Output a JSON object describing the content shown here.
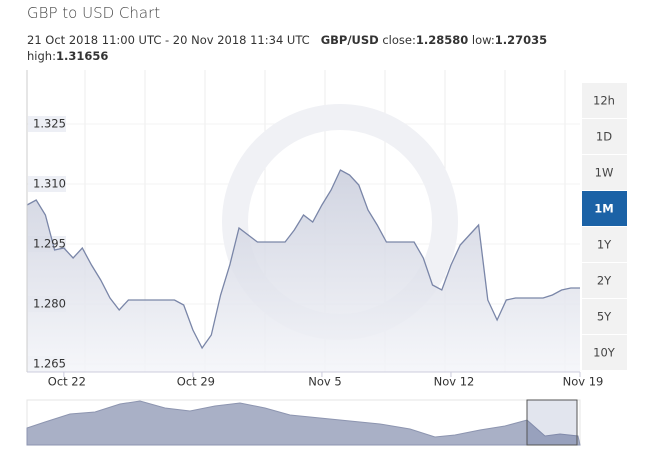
{
  "header": {
    "title": "GBP to USD Chart",
    "range": "21 Oct 2018 11:00 UTC - 20 Nov 2018 11:34 UTC",
    "pair": "GBP/USD",
    "close_label": "close:",
    "close": "1.28580",
    "low_label": "low:",
    "low": "1.27035",
    "high_label": "high:",
    "high": "1.31656"
  },
  "chart_data": {
    "type": "area",
    "color": "#7a86a8",
    "categories": [
      null,
      null,
      null,
      null,
      "Oct 22",
      null,
      null,
      null,
      null,
      null,
      null,
      null,
      null,
      null,
      null,
      null,
      null,
      null,
      "Oct 29",
      null,
      null,
      null,
      null,
      null,
      null,
      null,
      null,
      null,
      null,
      null,
      null,
      null,
      "Nov 5",
      null,
      null,
      null,
      null,
      null,
      null,
      null,
      null,
      null,
      null,
      null,
      null,
      null,
      "Nov 12",
      null,
      null,
      null,
      null,
      null,
      null,
      null,
      null,
      null,
      null,
      null,
      null,
      null,
      "Nov 19"
    ],
    "values": [
      1.30475,
      1.306,
      1.30225,
      1.2935,
      1.294,
      1.2915,
      1.294,
      1.28975,
      1.286,
      1.2815,
      1.2785,
      1.281,
      1.281,
      1.281,
      1.281,
      1.281,
      1.281,
      1.27975,
      1.2735,
      1.269,
      1.27225,
      1.28225,
      1.28975,
      1.299,
      1.29725,
      1.2955,
      1.2955,
      1.2955,
      1.2955,
      1.2985,
      1.30225,
      1.3005,
      1.30475,
      1.3085,
      1.3135,
      1.31225,
      1.30975,
      1.3035,
      1.29975,
      1.2955,
      1.2955,
      1.2955,
      1.2955,
      1.2915,
      1.28475,
      1.2835,
      1.28975,
      1.29475,
      1.29725,
      1.29975,
      1.281,
      1.276,
      1.281,
      1.2815,
      1.2815,
      1.2815,
      1.2815,
      1.28225,
      1.2835,
      1.284,
      1.284
    ],
    "ylim": [
      1.263,
      1.3385
    ],
    "yticks": [
      1.325,
      {
        "value": 1.31,
        "label": "1.310"
      },
      1.295,
      {
        "value": 1.28,
        "label": "1.280"
      },
      1.265
    ]
  },
  "range_buttons": {
    "options": [
      "12h",
      "1D",
      "1W",
      "1M",
      "1Y",
      "2Y",
      "5Y",
      "10Y"
    ],
    "active": "1M"
  }
}
